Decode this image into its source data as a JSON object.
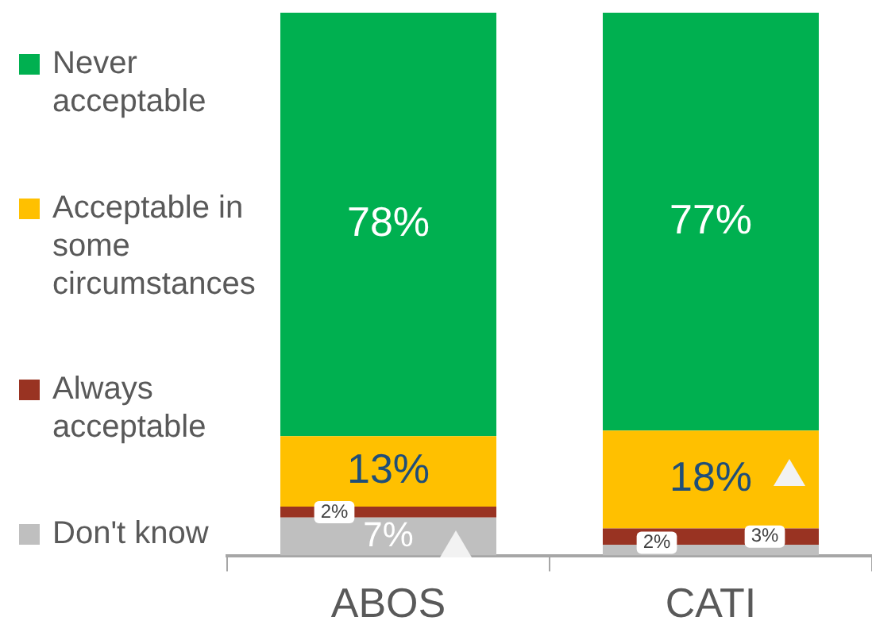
{
  "chart_data": {
    "type": "bar",
    "stacked": true,
    "categories": [
      "ABOS",
      "CATI"
    ],
    "ylim": [
      0,
      100
    ],
    "tick_labels": "x",
    "legend": "left",
    "grid": false,
    "series": [
      {
        "name": "Don't know",
        "color": "#bfbfbf",
        "values": [
          7,
          2
        ],
        "value_labels": [
          "7%",
          "2%"
        ]
      },
      {
        "name": "Always acceptable",
        "color": "#993322",
        "values": [
          2,
          3
        ],
        "value_labels": [
          "2%",
          "3%"
        ]
      },
      {
        "name": "Acceptable in some circumstances",
        "color": "#ffc000",
        "values": [
          13,
          18
        ],
        "value_labels": [
          "13%",
          "18%"
        ]
      },
      {
        "name": "Never acceptable",
        "color": "#00b050",
        "values": [
          78,
          77
        ],
        "value_labels": [
          "78%",
          "77%"
        ]
      }
    ]
  }
}
